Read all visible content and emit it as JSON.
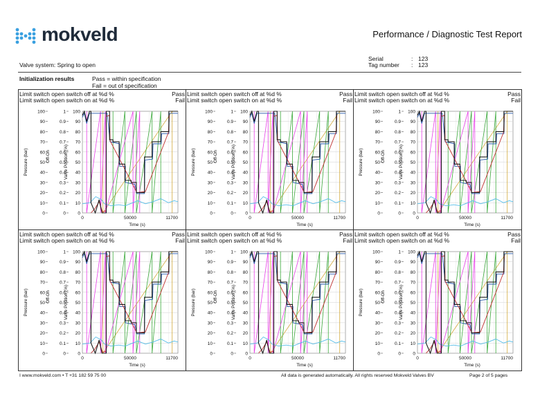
{
  "header": {
    "logo_text": "mokveld",
    "report_title": "Performance / Diagnostic Test Report",
    "valve_system": "Valve system: Spring to open",
    "serial_label": "Serial",
    "serial_value": "123",
    "tag_label": "Tag number",
    "tag_value": "123",
    "colon": ":"
  },
  "init": {
    "title": "Initialization results",
    "pass_legend": "Pass = within specification",
    "fail_legend": "Fail = out of specification"
  },
  "panel": {
    "line1": "Limit switch open switch off at %d %",
    "line1_status": "Pass",
    "line2": "Limit switch open switch on at %d %",
    "line2_status": "Fail"
  },
  "chart_data": {
    "type": "line",
    "panel_count": 6,
    "xlabel": "Time (s)",
    "x_ticks": [
      "0",
      "50000",
      "11700"
    ],
    "y_axes": [
      {
        "label": "Pressure (bar)",
        "ticks": [
          "0",
          "10",
          "20",
          "30",
          "40",
          "50",
          "60",
          "70",
          "80",
          "90",
          "100"
        ],
        "range": [
          0,
          100
        ]
      },
      {
        "label": "Off-On",
        "ticks": [
          "0",
          "0.1",
          "0.2",
          "0.3",
          "0.4",
          "0.5",
          "0.6",
          "0.7",
          "0.8",
          "0.9",
          "1"
        ],
        "range": [
          0,
          1
        ]
      },
      {
        "label": "Valve Position (%)",
        "ticks": [
          "0",
          "10",
          "20",
          "30",
          "40",
          "50",
          "60",
          "70",
          "80",
          "90",
          "100"
        ],
        "range": [
          0,
          100
        ]
      }
    ],
    "x_range": [
      0,
      1
    ],
    "series": [
      {
        "color": "#1a1a1a",
        "values": [
          [
            0.0,
            96
          ],
          [
            0.02,
            100
          ],
          [
            0.045,
            90
          ],
          [
            0.075,
            100
          ],
          [
            0.09,
            100
          ],
          [
            0.09,
            10
          ],
          [
            0.135,
            0
          ],
          [
            0.175,
            13
          ],
          [
            0.205,
            0
          ],
          [
            0.25,
            0
          ],
          [
            0.25,
            100
          ],
          [
            0.285,
            100
          ],
          [
            0.285,
            72
          ],
          [
            0.32,
            72
          ],
          [
            0.32,
            70
          ],
          [
            0.385,
            70
          ],
          [
            0.385,
            48
          ],
          [
            0.445,
            48
          ],
          [
            0.445,
            32
          ],
          [
            0.51,
            32
          ],
          [
            0.51,
            30
          ],
          [
            0.565,
            30
          ],
          [
            0.565,
            20
          ],
          [
            0.65,
            20
          ],
          [
            0.65,
            55
          ],
          [
            0.73,
            55
          ],
          [
            0.73,
            70
          ],
          [
            0.82,
            70
          ],
          [
            0.82,
            80
          ],
          [
            0.905,
            80
          ],
          [
            0.905,
            100
          ],
          [
            1.0,
            100
          ]
        ]
      },
      {
        "color": "#2255aa",
        "values": [
          [
            0.0,
            94
          ],
          [
            0.02,
            98
          ],
          [
            0.045,
            88
          ],
          [
            0.075,
            98
          ],
          [
            0.09,
            98
          ],
          [
            0.26,
            98
          ],
          [
            0.29,
            70
          ],
          [
            0.39,
            68
          ],
          [
            0.39,
            46
          ],
          [
            0.45,
            46
          ],
          [
            0.45,
            30
          ],
          [
            0.55,
            28
          ],
          [
            0.57,
            19
          ],
          [
            0.65,
            19
          ],
          [
            0.655,
            52
          ],
          [
            0.735,
            53
          ],
          [
            0.74,
            68
          ],
          [
            0.825,
            68
          ],
          [
            0.83,
            78
          ],
          [
            0.905,
            78
          ],
          [
            0.91,
            98
          ],
          [
            1.0,
            98
          ]
        ]
      },
      {
        "color": "#c03030",
        "values": [
          [
            0.09,
            0
          ],
          [
            0.13,
            4
          ],
          [
            0.175,
            11
          ],
          [
            0.21,
            1
          ],
          [
            0.25,
            2
          ],
          [
            0.25,
            95
          ],
          [
            0.285,
            96
          ],
          [
            0.29,
            71
          ],
          [
            0.57,
            20
          ],
          [
            0.66,
            21
          ],
          [
            0.9,
            79
          ],
          [
            0.91,
            96
          ]
        ]
      },
      {
        "color": "#55bde8",
        "values": [
          [
            0.0,
            9
          ],
          [
            0.08,
            10
          ],
          [
            0.14,
            16
          ],
          [
            0.2,
            13
          ],
          [
            0.23,
            9
          ],
          [
            0.3,
            7
          ],
          [
            0.38,
            8
          ],
          [
            0.45,
            7
          ],
          [
            0.5,
            9
          ],
          [
            0.58,
            12
          ],
          [
            0.66,
            9
          ],
          [
            0.74,
            11
          ],
          [
            0.82,
            14
          ],
          [
            0.9,
            10
          ],
          [
            0.96,
            12
          ],
          [
            1.0,
            11
          ]
        ]
      },
      {
        "color": "#e83ee8",
        "values": [
          [
            0.045,
            100
          ],
          [
            0.045,
            0
          ],
          [
            0.19,
            100
          ],
          [
            0.19,
            0
          ],
          [
            0.24,
            100
          ],
          [
            0.24,
            0
          ],
          [
            0.53,
            100
          ],
          [
            0.53,
            0
          ],
          [
            0.6,
            100
          ],
          [
            0.6,
            0
          ]
        ]
      },
      {
        "color": "#3aa83a",
        "values": [
          [
            0.32,
            100
          ],
          [
            0.32,
            0
          ],
          [
            0.445,
            100
          ],
          [
            0.445,
            0
          ],
          [
            0.565,
            100
          ],
          [
            0.565,
            0
          ],
          [
            0.73,
            100
          ],
          [
            0.73,
            0
          ],
          [
            0.82,
            100
          ],
          [
            0.82,
            0
          ]
        ]
      },
      {
        "color": "#d2aa3c",
        "values": [
          [
            0.215,
            100
          ],
          [
            0.215,
            0
          ],
          [
            0.94,
            100
          ],
          [
            0.94,
            0
          ]
        ]
      }
    ],
    "legend": "none",
    "grid": true
  },
  "footer": {
    "contact": "I www.mokveld.com • T +31 182 59 75 00",
    "rights": "All data is generated automatically. All rights reserved Mokveld Valves BV",
    "page": "Page 2 of 5 pages"
  },
  "colors": {
    "logo_blue": "#3aa0e0",
    "logo_text": "#1f2b3a",
    "border": "#333333"
  }
}
